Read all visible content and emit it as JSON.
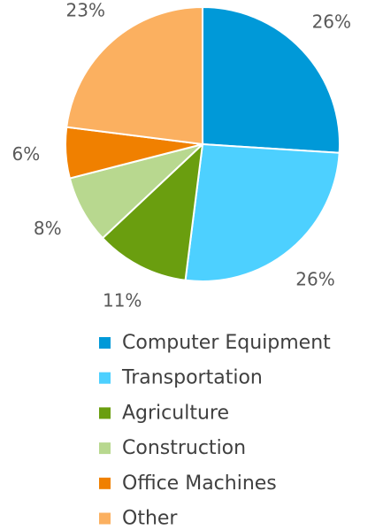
{
  "chart_data": {
    "type": "pie",
    "categories": [
      "Computer Equipment",
      "Transportation",
      "Agriculture",
      "Construction",
      "Office Machines",
      "Other"
    ],
    "values": [
      26,
      26,
      11,
      8,
      6,
      23
    ],
    "value_labels": [
      "26%",
      "26%",
      "11%",
      "8%",
      "6%",
      "23%"
    ],
    "colors": [
      "#0099d8",
      "#4dd0ff",
      "#6a9e0f",
      "#b8d88f",
      "#f08000",
      "#fbb060"
    ]
  }
}
